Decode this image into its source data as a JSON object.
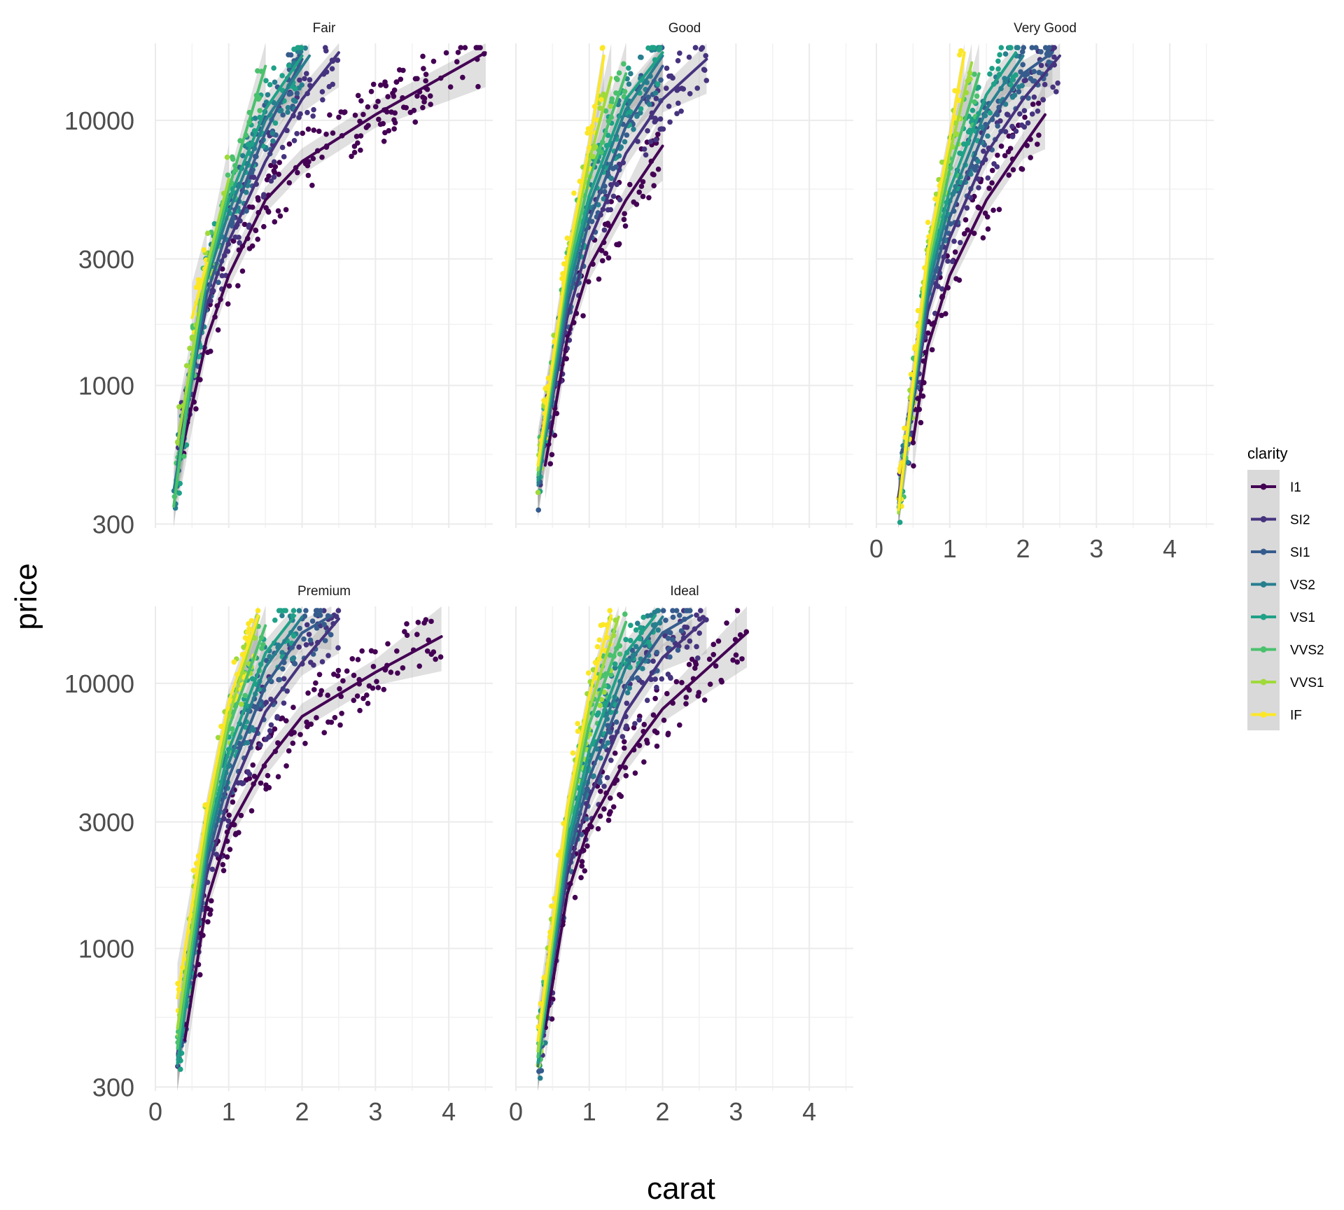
{
  "chart_data": {
    "type": "scatter",
    "facet_variable": "cut",
    "xlabel": "carat",
    "ylabel": "price",
    "x_scale": "linear",
    "y_scale": "log10",
    "xlim": [
      0,
      4.6
    ],
    "ylim": [
      290,
      19500
    ],
    "x_ticks": [
      0,
      1,
      2,
      3,
      4
    ],
    "x_tick_labels": [
      "0",
      "1",
      "2",
      "3",
      "4"
    ],
    "y_ticks": [
      300,
      1000,
      3000,
      10000
    ],
    "y_tick_labels": [
      "300",
      "1000",
      "3000",
      "10000"
    ],
    "grid": true,
    "smooth": "loess with grey confidence band",
    "legend": {
      "title": "clarity",
      "position": "right",
      "entries": [
        {
          "label": "I1",
          "color": "#440154"
        },
        {
          "label": "SI2",
          "color": "#46337E"
        },
        {
          "label": "SI1",
          "color": "#365C8D"
        },
        {
          "label": "VS2",
          "color": "#277F8E"
        },
        {
          "label": "VS1",
          "color": "#1FA187"
        },
        {
          "label": "VVS2",
          "color": "#4AC16D"
        },
        {
          "label": "VVS1",
          "color": "#9FDA3A"
        },
        {
          "label": "IF",
          "color": "#FDE725"
        }
      ]
    },
    "facets": [
      {
        "name": "Fair",
        "series": [
          {
            "name": "I1",
            "x": [
              0.35,
              0.7,
              1.0,
              1.5,
              2.0,
              3.0,
              4.5
            ],
            "y": [
              550,
              1500,
              2600,
              5000,
              7000,
              10500,
              18000
            ]
          },
          {
            "name": "SI2",
            "x": [
              0.3,
              0.7,
              1.0,
              1.5,
              2.0,
              2.5
            ],
            "y": [
              600,
              2000,
              3500,
              7000,
              12000,
              18000
            ]
          },
          {
            "name": "SI1",
            "x": [
              0.3,
              0.7,
              1.0,
              1.5,
              2.0
            ],
            "y": [
              500,
              2200,
              4000,
              9000,
              17000
            ]
          },
          {
            "name": "VS2",
            "x": [
              0.25,
              0.7,
              1.0,
              1.5,
              2.1
            ],
            "y": [
              400,
              2500,
              4500,
              10000,
              17500
            ]
          },
          {
            "name": "VS1",
            "x": [
              0.3,
              0.7,
              1.0,
              1.5,
              2.0
            ],
            "y": [
              450,
              2600,
              5000,
              11000,
              17500
            ]
          },
          {
            "name": "VVS2",
            "x": [
              0.25,
              0.6,
              1.0,
              1.5
            ],
            "y": [
              350,
              2000,
              5500,
              16000
            ]
          },
          {
            "name": "VVS1",
            "x": [
              0.3,
              0.7,
              1.0
            ],
            "y": [
              600,
              2800,
              6000
            ]
          },
          {
            "name": "IF",
            "x": [
              0.5,
              0.7
            ],
            "y": [
              1800,
              2900
            ]
          }
        ]
      },
      {
        "name": "Good",
        "series": [
          {
            "name": "I1",
            "x": [
              0.4,
              0.7,
              1.0,
              1.5,
              2.0
            ],
            "y": [
              500,
              1500,
              2800,
              5000,
              8000
            ]
          },
          {
            "name": "SI2",
            "x": [
              0.3,
              0.7,
              1.0,
              1.5,
              2.0,
              2.6
            ],
            "y": [
              450,
              1800,
              3500,
              7500,
              12000,
              17000
            ]
          },
          {
            "name": "SI1",
            "x": [
              0.3,
              0.7,
              1.0,
              1.5,
              2.0
            ],
            "y": [
              430,
              2000,
              4200,
              9500,
              16000
            ]
          },
          {
            "name": "VS2",
            "x": [
              0.3,
              0.7,
              1.0,
              1.5,
              2.0
            ],
            "y": [
              420,
              2200,
              4800,
              11000,
              17500
            ]
          },
          {
            "name": "VS1",
            "x": [
              0.3,
              0.7,
              1.0,
              1.5,
              2.0
            ],
            "y": [
              440,
              2400,
              5200,
              12000,
              18000
            ]
          },
          {
            "name": "VVS2",
            "x": [
              0.3,
              0.7,
              1.0,
              1.5
            ],
            "y": [
              460,
              2600,
              6000,
              15000
            ]
          },
          {
            "name": "VVS1",
            "x": [
              0.3,
              0.7,
              1.0,
              1.3
            ],
            "y": [
              480,
              2800,
              7000,
              14500
            ]
          },
          {
            "name": "IF",
            "x": [
              0.3,
              0.7,
              1.0,
              1.2
            ],
            "y": [
              500,
              3000,
              8000,
              17500
            ]
          }
        ]
      },
      {
        "name": "Very Good",
        "series": [
          {
            "name": "I1",
            "x": [
              0.5,
              0.7,
              1.0,
              1.5,
              2.0,
              2.3
            ],
            "y": [
              620,
              1400,
              2600,
              5000,
              8000,
              10500
            ]
          },
          {
            "name": "SI2",
            "x": [
              0.3,
              0.7,
              1.0,
              1.5,
              2.0,
              2.5
            ],
            "y": [
              380,
              1900,
              3600,
              7500,
              12000,
              17500
            ]
          },
          {
            "name": "SI1",
            "x": [
              0.3,
              0.7,
              1.0,
              1.5,
              2.0,
              2.4
            ],
            "y": [
              360,
              2100,
              4300,
              9500,
              15000,
              18000
            ]
          },
          {
            "name": "VS2",
            "x": [
              0.3,
              0.7,
              1.0,
              1.5,
              2.0
            ],
            "y": [
              350,
              2300,
              4900,
              11000,
              17500
            ]
          },
          {
            "name": "VS1",
            "x": [
              0.3,
              0.7,
              1.0,
              1.5,
              1.9
            ],
            "y": [
              340,
              2500,
              5500,
              12500,
              18000
            ]
          },
          {
            "name": "VVS2",
            "x": [
              0.3,
              0.7,
              1.0,
              1.4
            ],
            "y": [
              330,
              2700,
              6500,
              15000
            ]
          },
          {
            "name": "VVS1",
            "x": [
              0.3,
              0.7,
              1.0,
              1.3
            ],
            "y": [
              330,
              2900,
              7500,
              16500
            ]
          },
          {
            "name": "IF",
            "x": [
              0.3,
              0.7,
              1.0,
              1.2
            ],
            "y": [
              340,
              3200,
              8500,
              18000
            ]
          }
        ]
      },
      {
        "name": "Premium",
        "series": [
          {
            "name": "I1",
            "x": [
              0.4,
              0.7,
              1.0,
              1.5,
              2.0,
              3.0,
              3.9
            ],
            "y": [
              450,
              1500,
              2800,
              5000,
              7500,
              11000,
              15000
            ]
          },
          {
            "name": "SI2",
            "x": [
              0.3,
              0.7,
              1.0,
              1.5,
              2.0,
              2.5
            ],
            "y": [
              400,
              1900,
              3700,
              7800,
              12000,
              17500
            ]
          },
          {
            "name": "SI1",
            "x": [
              0.3,
              0.7,
              1.0,
              1.5,
              2.0,
              2.4
            ],
            "y": [
              380,
              2100,
              4400,
              9800,
              15500,
              18000
            ]
          },
          {
            "name": "VS2",
            "x": [
              0.3,
              0.7,
              1.0,
              1.5,
              2.0
            ],
            "y": [
              360,
              2300,
              5000,
              11500,
              17800
            ]
          },
          {
            "name": "VS1",
            "x": [
              0.3,
              0.7,
              1.0,
              1.5,
              1.9
            ],
            "y": [
              370,
              2500,
              5600,
              13000,
              18000
            ]
          },
          {
            "name": "VVS2",
            "x": [
              0.3,
              0.7,
              1.0,
              1.5
            ],
            "y": [
              420,
              2700,
              6800,
              16500
            ]
          },
          {
            "name": "VVS1",
            "x": [
              0.3,
              0.7,
              1.0,
              1.4
            ],
            "y": [
              500,
              2900,
              7500,
              17500
            ]
          },
          {
            "name": "IF",
            "x": [
              0.3,
              0.7,
              1.0,
              1.4
            ],
            "y": [
              650,
              3300,
              8500,
              18000
            ]
          }
        ]
      },
      {
        "name": "Ideal",
        "series": [
          {
            "name": "I1",
            "x": [
              0.4,
              0.7,
              1.0,
              1.5,
              2.0,
              3.15
            ],
            "y": [
              500,
              1600,
              2900,
              5200,
              8000,
              15500
            ]
          },
          {
            "name": "SI2",
            "x": [
              0.3,
              0.7,
              1.0,
              1.5,
              2.0,
              2.6
            ],
            "y": [
              390,
              1900,
              3700,
              7800,
              12500,
              17500
            ]
          },
          {
            "name": "SI1",
            "x": [
              0.3,
              0.7,
              1.0,
              1.5,
              2.0,
              2.4
            ],
            "y": [
              370,
              2100,
              4400,
              9800,
              15500,
              18000
            ]
          },
          {
            "name": "VS2",
            "x": [
              0.3,
              0.7,
              1.0,
              1.5,
              2.0
            ],
            "y": [
              360,
              2300,
              5000,
              11500,
              17800
            ]
          },
          {
            "name": "VS1",
            "x": [
              0.3,
              0.7,
              1.0,
              1.5,
              1.9
            ],
            "y": [
              370,
              2500,
              5600,
              13000,
              18000
            ]
          },
          {
            "name": "VVS2",
            "x": [
              0.3,
              0.7,
              1.0,
              1.5
            ],
            "y": [
              390,
              2800,
              7000,
              17000
            ]
          },
          {
            "name": "VVS1",
            "x": [
              0.3,
              0.7,
              1.0,
              1.4
            ],
            "y": [
              410,
              3000,
              8000,
              17800
            ]
          },
          {
            "name": "IF",
            "x": [
              0.3,
              0.7,
              1.0,
              1.3
            ],
            "y": [
              450,
              3400,
              9000,
              18000
            ]
          }
        ]
      }
    ]
  }
}
